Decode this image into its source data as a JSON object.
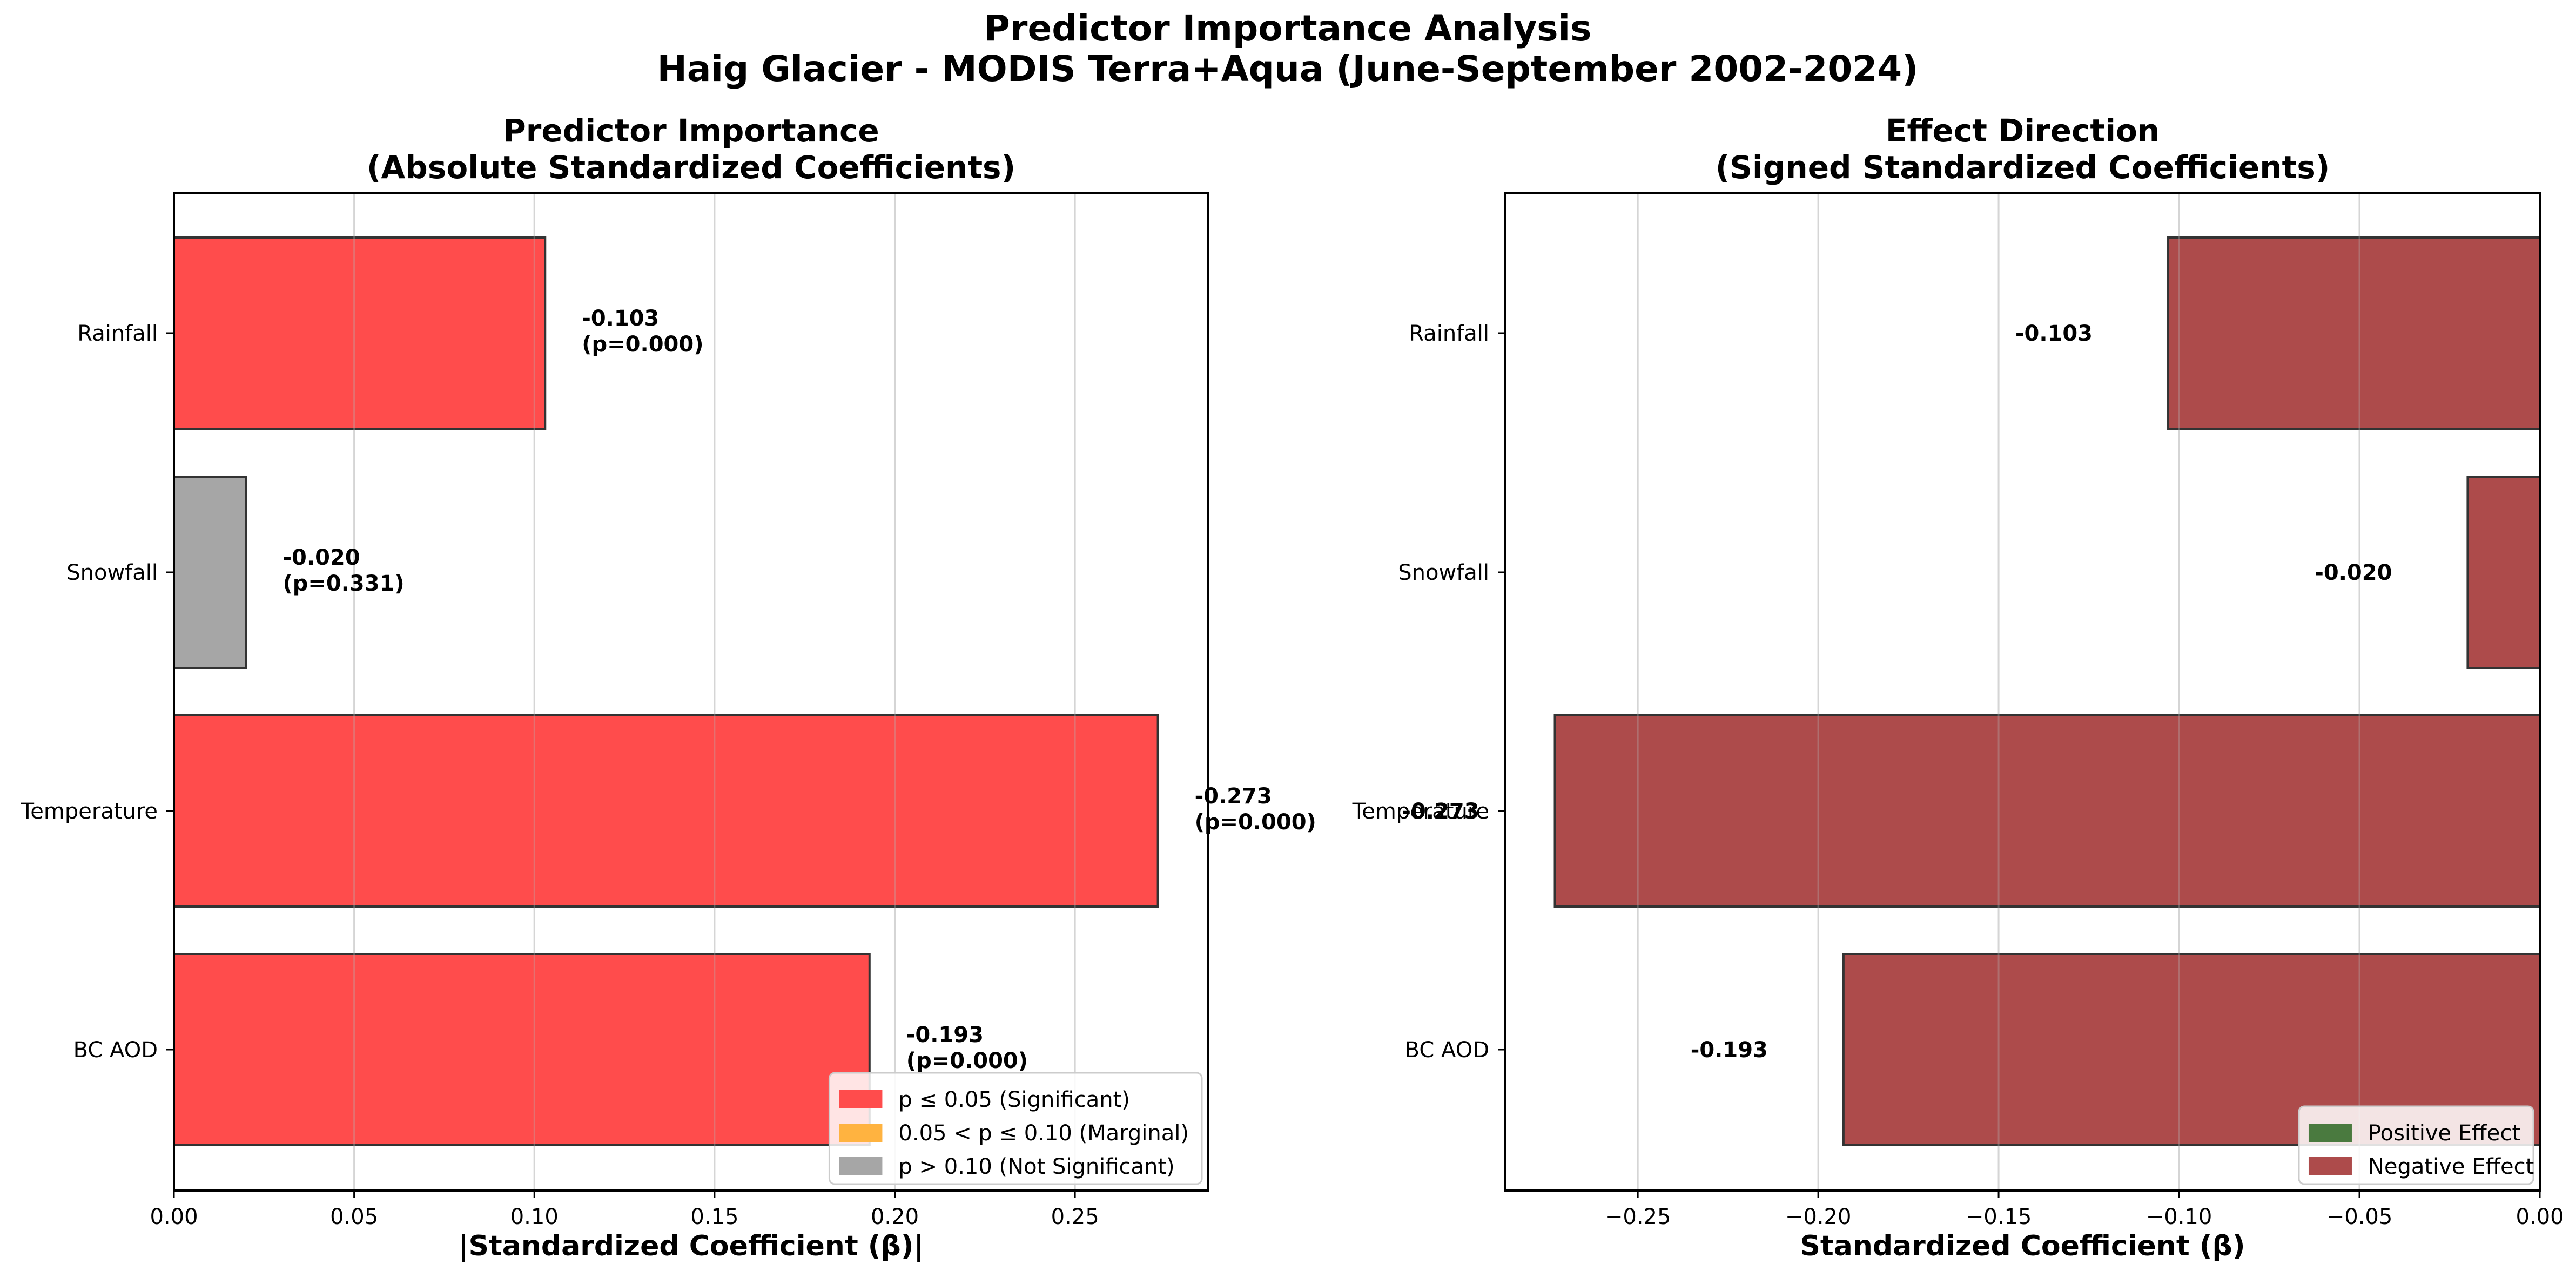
{
  "suptitle": [
    "Predictor Importance Analysis",
    "Haig Glacier - MODIS Terra+Aqua (June-September 2002-2024)"
  ],
  "chart_data": [
    {
      "type": "bar",
      "orientation": "horizontal",
      "title": [
        "Predictor Importance",
        "(Absolute Standardized Coefficients)"
      ],
      "xlabel": "|Standardized Coefficient (β)|",
      "ylabel": "",
      "xlim": [
        0,
        0.287
      ],
      "xticks": [
        "0.00",
        "0.05",
        "0.10",
        "0.15",
        "0.20",
        "0.25"
      ],
      "grid": "x",
      "categories": [
        "Rainfall",
        "Snowfall",
        "Temperature",
        "BC AOD"
      ],
      "values": [
        0.103,
        0.02,
        0.273,
        0.193
      ],
      "labels": [
        [
          "-0.103",
          "(p=0.000)"
        ],
        [
          "-0.020",
          "(p=0.331)"
        ],
        [
          "-0.273",
          "(p=0.000)"
        ],
        [
          "-0.193",
          "(p=0.000)"
        ]
      ],
      "significance": [
        "significant",
        "not_significant",
        "significant",
        "significant"
      ],
      "colors": {
        "significant": "#ff4c4c",
        "marginal": "#ffb340",
        "not_significant": "#a6a6a6"
      },
      "legend": {
        "position": "lower-right",
        "entries": [
          {
            "label": "p ≤ 0.05 (Significant)",
            "color": "#ff4c4c"
          },
          {
            "label": "0.05 < p ≤ 0.10 (Marginal)",
            "color": "#ffb340"
          },
          {
            "label": "p > 0.10 (Not Significant)",
            "color": "#a6a6a6"
          }
        ]
      }
    },
    {
      "type": "bar",
      "orientation": "horizontal",
      "title": [
        "Effect Direction",
        "(Signed Standardized Coefficients)"
      ],
      "xlabel": "Standardized Coefficient (β)",
      "ylabel": "",
      "xlim": [
        -0.2867,
        0.0
      ],
      "xticks": [
        "−0.25",
        "−0.20",
        "−0.15",
        "−0.10",
        "−0.05",
        "0.00"
      ],
      "grid": "x",
      "categories": [
        "Rainfall",
        "Snowfall",
        "Temperature",
        "BC AOD"
      ],
      "values": [
        -0.103,
        -0.02,
        -0.273,
        -0.193
      ],
      "labels": [
        "-0.103",
        "-0.020",
        "-0.273",
        "-0.193"
      ],
      "colors": {
        "positive": "#4a7a3f",
        "negative": "#ad4b4b"
      },
      "legend": {
        "position": "lower-right",
        "entries": [
          {
            "label": "Positive Effect",
            "color": "#4a7a3f"
          },
          {
            "label": "Negative Effect",
            "color": "#ad4b4b"
          }
        ]
      }
    }
  ]
}
